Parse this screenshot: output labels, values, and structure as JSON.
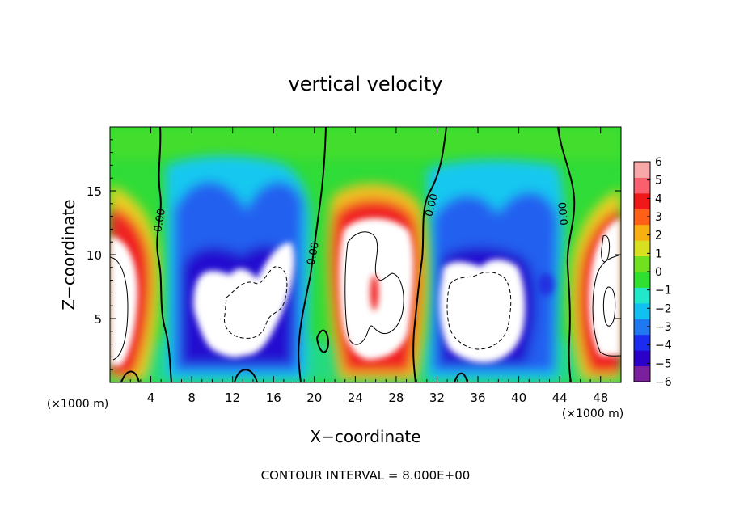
{
  "chart_data": {
    "type": "heatmap",
    "title": "vertical velocity",
    "xlabel": "X−coordinate",
    "ylabel": "Z−coordinate",
    "x_unit_label": "(×1000 m)",
    "xlim": [
      0,
      50
    ],
    "ylim": [
      0,
      20
    ],
    "x_ticks": [
      4,
      8,
      12,
      16,
      20,
      24,
      28,
      32,
      36,
      40,
      44,
      48
    ],
    "y_ticks": [
      5,
      10,
      15
    ],
    "colorbar": {
      "min": -6,
      "max": 6,
      "ticks": [
        6,
        5,
        4,
        3,
        2,
        1,
        0,
        -1,
        -2,
        -3,
        -4,
        -5,
        -6
      ],
      "tick_labels": [
        "6",
        "5",
        "4",
        "3",
        "2",
        "1",
        "0",
        "−1",
        "−2",
        "−3",
        "−4",
        "−5",
        "−6"
      ],
      "colors": [
        "#7a1f9e",
        "#2b00c8",
        "#1b2bf0",
        "#1f78f0",
        "#10c0f0",
        "#20e8c8",
        "#30e030",
        "#70e020",
        "#d8e020",
        "#f8b010",
        "#ff6018",
        "#f01818",
        "#f86070",
        "#f8a8a8"
      ]
    },
    "contour_label": "0.00",
    "footer": "CONTOUR INTERVAL = 8.000E+00"
  }
}
